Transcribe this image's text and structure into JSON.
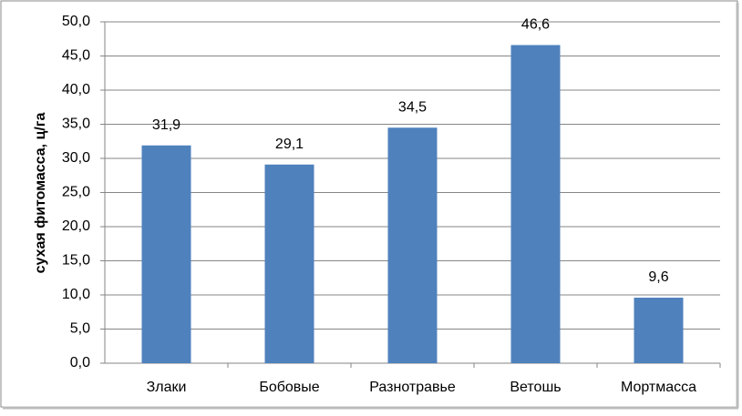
{
  "chart_data": {
    "type": "bar",
    "y_label": "сухая фитомасса, ц/га",
    "categories": [
      "Злаки",
      "Бобовые",
      "Разнотравье",
      "Ветошь",
      "Мортмасса"
    ],
    "values": [
      31.9,
      29.1,
      34.5,
      46.6,
      9.6
    ],
    "value_labels": [
      "31,9",
      "29,1",
      "34,5",
      "46,6",
      "9,6"
    ],
    "color": "#4f81bd",
    "ylim": [
      0,
      50
    ],
    "yticks": [
      {
        "value": 0,
        "label": "0,0"
      },
      {
        "value": 5,
        "label": "5,0"
      },
      {
        "value": 10,
        "label": "10,0"
      },
      {
        "value": 15,
        "label": "15,0"
      },
      {
        "value": 20,
        "label": "20,0"
      },
      {
        "value": 25,
        "label": "25,0"
      },
      {
        "value": 30,
        "label": "30,0"
      },
      {
        "value": 35,
        "label": "35,0"
      },
      {
        "value": 40,
        "label": "40,0"
      },
      {
        "value": 45,
        "label": "45,0"
      },
      {
        "value": 50,
        "label": "50,0"
      }
    ],
    "grid": true
  }
}
